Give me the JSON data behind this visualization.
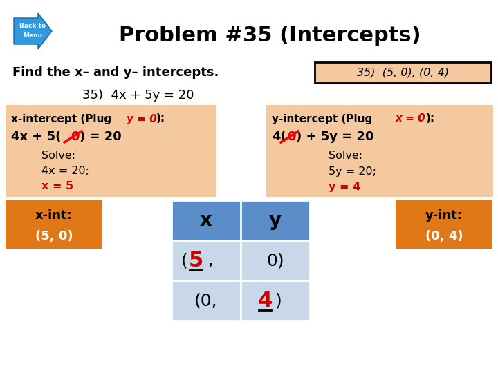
{
  "title": "Problem #35 (Intercepts)",
  "bg_color": "#ffffff",
  "title_color": "#000000",
  "find_text": "Find the x– and y– intercepts.",
  "equation": "35)  4x + 5y = 20",
  "answer_box_text": "35)  (5, 0), (0, 4)",
  "left_box_color": "#f5c9a0",
  "right_box_color": "#f5c9a0",
  "orange_box_color": "#e07818",
  "blue_header_color": "#5b8dc8",
  "table_row_color": "#c8d8e8",
  "red_color": "#cc0000",
  "xint_label": "x-int:",
  "xint_value": "(5, 0)",
  "yint_label": "y-int:",
  "yint_value": "(0, 4)"
}
